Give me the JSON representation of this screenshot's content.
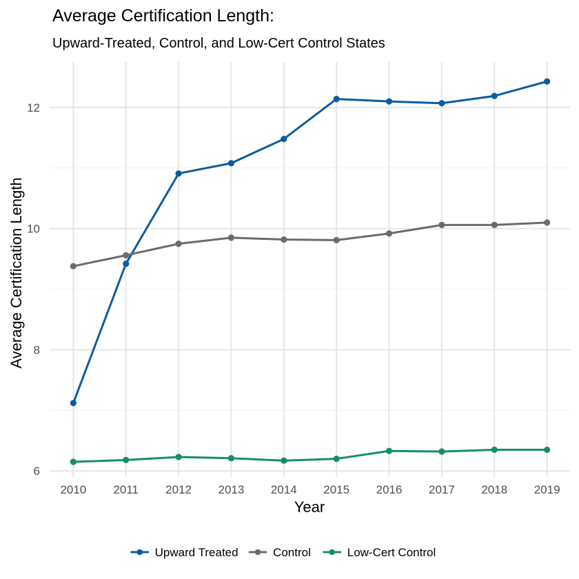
{
  "chart_data": {
    "type": "line",
    "title": "Average Certification Length:",
    "subtitle": "Upward-Treated, Control, and Low-Cert Control States",
    "xlabel": "Year",
    "ylabel": "Average Certification Length",
    "x": [
      2010,
      2011,
      2012,
      2013,
      2014,
      2015,
      2016,
      2017,
      2018,
      2019
    ],
    "y_ticks": [
      6,
      8,
      10,
      12
    ],
    "ylim": [
      5.9,
      12.75
    ],
    "grid": true,
    "legend_position": "bottom",
    "series": [
      {
        "name": "Upward Treated",
        "color": "#0b5c9e",
        "values": [
          7.12,
          9.42,
          10.91,
          11.08,
          11.48,
          12.14,
          12.1,
          12.07,
          12.19,
          12.43
        ]
      },
      {
        "name": "Control",
        "color": "#6b6b6b",
        "values": [
          9.38,
          9.56,
          9.75,
          9.85,
          9.82,
          9.81,
          9.92,
          10.06,
          10.06,
          10.1
        ]
      },
      {
        "name": "Low-Cert Control",
        "color": "#168f5f",
        "values": [
          6.15,
          6.18,
          6.23,
          6.21,
          6.17,
          6.2,
          6.33,
          6.32,
          6.35,
          6.35
        ]
      }
    ]
  }
}
